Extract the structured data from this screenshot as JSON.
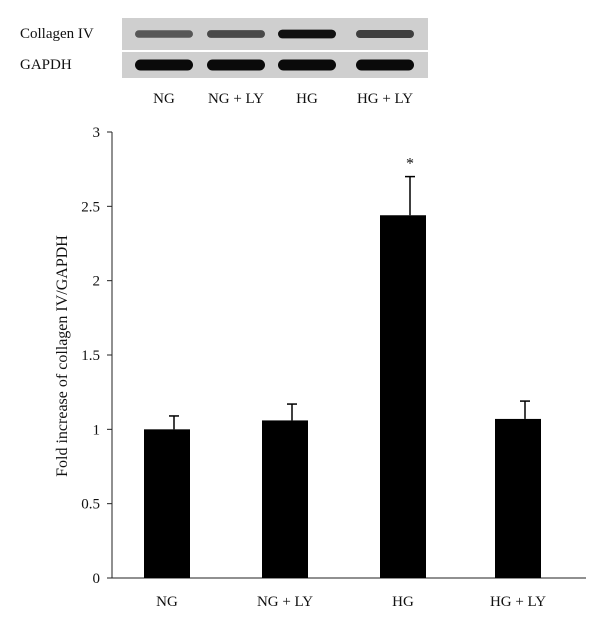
{
  "blot": {
    "rows": [
      {
        "label": "Collagen IV",
        "intensities": [
          0.45,
          0.55,
          0.95,
          0.62
        ]
      },
      {
        "label": "GAPDH",
        "intensities": [
          1.0,
          1.0,
          1.0,
          1.0
        ]
      }
    ],
    "lanes": [
      "NG",
      "NG + LY",
      "HG",
      "HG + LY"
    ]
  },
  "chart_data": {
    "type": "bar",
    "categories": [
      "NG",
      "NG + LY",
      "HG",
      "HG + LY"
    ],
    "values": [
      1.0,
      1.06,
      2.44,
      1.07
    ],
    "errors": [
      0.09,
      0.11,
      0.26,
      0.12
    ],
    "annotations": [
      "",
      "",
      "*",
      ""
    ],
    "title": "",
    "xlabel": "",
    "ylabel": "Fold increase of collagen IV/GAPDH",
    "ylim": [
      0,
      3
    ],
    "yticks": [
      "0",
      "0.5",
      "1",
      "1.5",
      "2",
      "2.5",
      "3"
    ],
    "bar_color": "#000000",
    "grid": false,
    "legend": "none"
  }
}
